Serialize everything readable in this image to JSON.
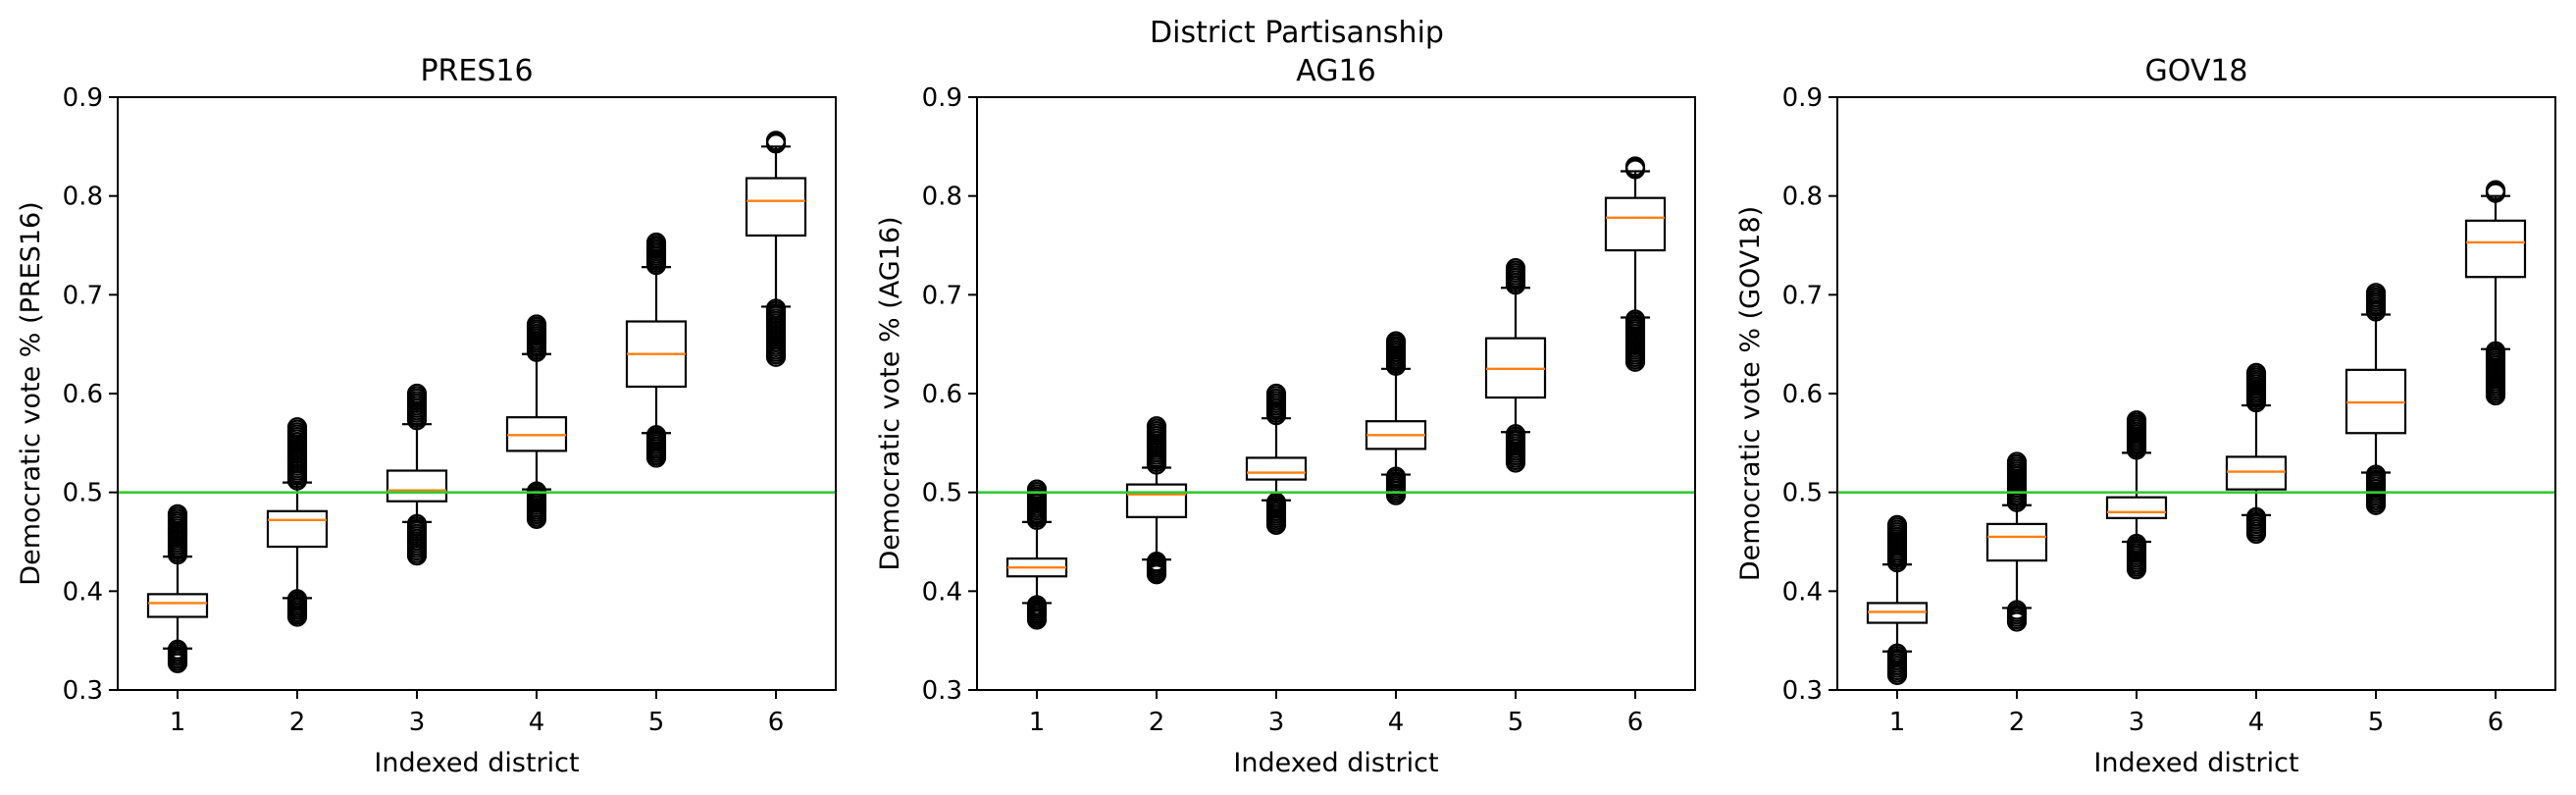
{
  "suptitle": "District Partisanship",
  "colors": {
    "median": "#ff7f0e",
    "reference_line": "#33cc33",
    "box": "#000000"
  },
  "chart_data": [
    {
      "type": "boxplot",
      "title": "PRES16",
      "xlabel": "Indexed district",
      "ylabel": "Democratic vote % (PRES16)",
      "ylim": [
        0.3,
        0.9
      ],
      "yticks": [
        "0.3",
        "0.4",
        "0.5",
        "0.6",
        "0.7",
        "0.8",
        "0.9"
      ],
      "categories": [
        "1",
        "2",
        "3",
        "4",
        "5",
        "6"
      ],
      "reference_line": 0.5,
      "boxes": [
        {
          "q1": 0.374,
          "median": 0.388,
          "q3": 0.397,
          "whisker_low": 0.342,
          "whisker_high": 0.435,
          "fliers_low": [
            0.327,
            0.341
          ],
          "fliers_high": [
            0.437,
            0.478
          ]
        },
        {
          "q1": 0.445,
          "median": 0.472,
          "q3": 0.481,
          "whisker_low": 0.393,
          "whisker_high": 0.51,
          "fliers_low": [
            0.374,
            0.392
          ],
          "fliers_high": [
            0.512,
            0.566
          ]
        },
        {
          "q1": 0.491,
          "median": 0.502,
          "q3": 0.522,
          "whisker_low": 0.47,
          "whisker_high": 0.569,
          "fliers_low": [
            0.436,
            0.468
          ],
          "fliers_high": [
            0.573,
            0.6
          ]
        },
        {
          "q1": 0.542,
          "median": 0.558,
          "q3": 0.576,
          "whisker_low": 0.503,
          "whisker_high": 0.64,
          "fliers_low": [
            0.473,
            0.501
          ],
          "fliers_high": [
            0.642,
            0.67
          ]
        },
        {
          "q1": 0.607,
          "median": 0.64,
          "q3": 0.673,
          "whisker_low": 0.56,
          "whisker_high": 0.728,
          "fliers_low": [
            0.535,
            0.558
          ],
          "fliers_high": [
            0.73,
            0.753
          ]
        },
        {
          "q1": 0.76,
          "median": 0.795,
          "q3": 0.818,
          "whisker_low": 0.688,
          "whisker_high": 0.85,
          "fliers_low": [
            0.637,
            0.686
          ],
          "fliers_high": [
            0.853,
            0.856
          ]
        }
      ]
    },
    {
      "type": "boxplot",
      "title": "AG16",
      "xlabel": "Indexed district",
      "ylabel": "Democratic vote % (AG16)",
      "ylim": [
        0.3,
        0.9
      ],
      "yticks": [
        "0.3",
        "0.4",
        "0.5",
        "0.6",
        "0.7",
        "0.8",
        "0.9"
      ],
      "categories": [
        "1",
        "2",
        "3",
        "4",
        "5",
        "6"
      ],
      "reference_line": 0.5,
      "boxes": [
        {
          "q1": 0.415,
          "median": 0.424,
          "q3": 0.433,
          "whisker_low": 0.388,
          "whisker_high": 0.47,
          "fliers_low": [
            0.371,
            0.386
          ],
          "fliers_high": [
            0.472,
            0.503
          ]
        },
        {
          "q1": 0.475,
          "median": 0.498,
          "q3": 0.508,
          "whisker_low": 0.432,
          "whisker_high": 0.525,
          "fliers_low": [
            0.417,
            0.43
          ],
          "fliers_high": [
            0.528,
            0.567
          ]
        },
        {
          "q1": 0.513,
          "median": 0.52,
          "q3": 0.535,
          "whisker_low": 0.492,
          "whisker_high": 0.575,
          "fliers_low": [
            0.467,
            0.49
          ],
          "fliers_high": [
            0.578,
            0.6
          ]
        },
        {
          "q1": 0.544,
          "median": 0.558,
          "q3": 0.572,
          "whisker_low": 0.518,
          "whisker_high": 0.625,
          "fliers_low": [
            0.497,
            0.516
          ],
          "fliers_high": [
            0.628,
            0.653
          ]
        },
        {
          "q1": 0.596,
          "median": 0.625,
          "q3": 0.656,
          "whisker_low": 0.561,
          "whisker_high": 0.707,
          "fliers_low": [
            0.53,
            0.559
          ],
          "fliers_high": [
            0.71,
            0.727
          ]
        },
        {
          "q1": 0.745,
          "median": 0.778,
          "q3": 0.798,
          "whisker_low": 0.677,
          "whisker_high": 0.825,
          "fliers_low": [
            0.632,
            0.675
          ],
          "fliers_high": [
            0.827,
            0.83
          ]
        }
      ]
    },
    {
      "type": "boxplot",
      "title": "GOV18",
      "xlabel": "Indexed district",
      "ylabel": "Democratic vote % (GOV18)",
      "ylim": [
        0.3,
        0.9
      ],
      "yticks": [
        "0.3",
        "0.4",
        "0.5",
        "0.6",
        "0.7",
        "0.8",
        "0.9"
      ],
      "categories": [
        "1",
        "2",
        "3",
        "4",
        "5",
        "6"
      ],
      "reference_line": 0.5,
      "boxes": [
        {
          "q1": 0.368,
          "median": 0.379,
          "q3": 0.388,
          "whisker_low": 0.339,
          "whisker_high": 0.427,
          "fliers_low": [
            0.315,
            0.337
          ],
          "fliers_high": [
            0.429,
            0.467
          ]
        },
        {
          "q1": 0.431,
          "median": 0.455,
          "q3": 0.468,
          "whisker_low": 0.383,
          "whisker_high": 0.487,
          "fliers_low": [
            0.369,
            0.381
          ],
          "fliers_high": [
            0.49,
            0.531
          ]
        },
        {
          "q1": 0.474,
          "median": 0.48,
          "q3": 0.495,
          "whisker_low": 0.45,
          "whisker_high": 0.54,
          "fliers_low": [
            0.422,
            0.448
          ],
          "fliers_high": [
            0.543,
            0.573
          ]
        },
        {
          "q1": 0.503,
          "median": 0.521,
          "q3": 0.536,
          "whisker_low": 0.477,
          "whisker_high": 0.588,
          "fliers_low": [
            0.458,
            0.475
          ],
          "fliers_high": [
            0.591,
            0.621
          ]
        },
        {
          "q1": 0.56,
          "median": 0.591,
          "q3": 0.624,
          "whisker_low": 0.52,
          "whisker_high": 0.68,
          "fliers_low": [
            0.487,
            0.518
          ],
          "fliers_high": [
            0.683,
            0.702
          ]
        },
        {
          "q1": 0.718,
          "median": 0.753,
          "q3": 0.775,
          "whisker_low": 0.645,
          "whisker_high": 0.8,
          "fliers_low": [
            0.598,
            0.643
          ],
          "fliers_high": [
            0.803,
            0.806
          ]
        }
      ]
    }
  ]
}
